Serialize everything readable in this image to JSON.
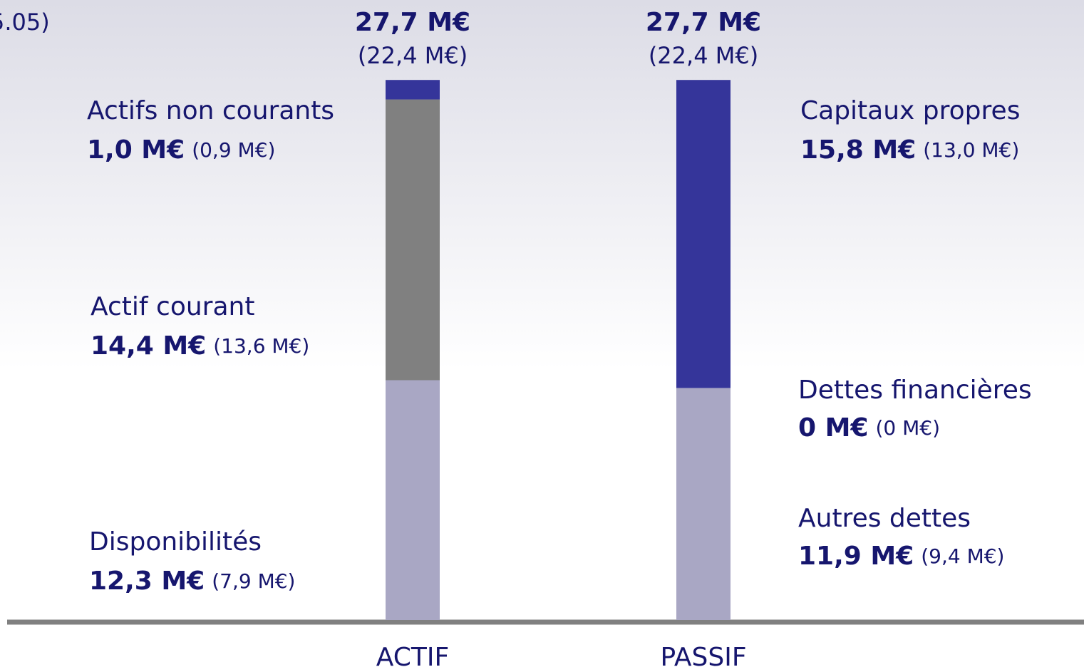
{
  "corner_text": "5.05)",
  "chart_data": {
    "type": "stacked_bar",
    "categories": [
      "ACTIF",
      "PASSIF"
    ],
    "total_labels": [
      "27,7 M€",
      "27,7 M€"
    ],
    "prior_total_labels": [
      "(22,4 M€)",
      "(22,4 M€)"
    ],
    "ylim": [
      0,
      28
    ],
    "bars": [
      {
        "segments": [
          {
            "name": "Disponibilités",
            "value": 12.3,
            "value_label": "12,3 M€",
            "prior_label": "(7,9 M€)",
            "color": "#a9a7c4"
          },
          {
            "name": "Actif courant",
            "value": 14.4,
            "value_label": "14,4 M€",
            "prior_label": "(13,6 M€)",
            "color": "#808080"
          },
          {
            "name": "Actifs non courants",
            "value": 1.0,
            "value_label": "1,0 M€",
            "prior_label": "(0,9 M€)",
            "color": "#35359a"
          }
        ]
      },
      {
        "segments": [
          {
            "name": "Autres dettes",
            "value": 11.9,
            "value_label": "11,9 M€",
            "prior_label": "(9,4 M€)",
            "color": "#a9a7c4"
          },
          {
            "name": "Dettes financières",
            "value": 0,
            "value_label": "0 M€",
            "prior_label": "(0 M€)",
            "color": "#808080"
          },
          {
            "name": "Capitaux propres",
            "value": 15.8,
            "value_label": "15,8 M€",
            "prior_label": "(13,0 M€)",
            "color": "#35359a"
          }
        ]
      }
    ]
  }
}
